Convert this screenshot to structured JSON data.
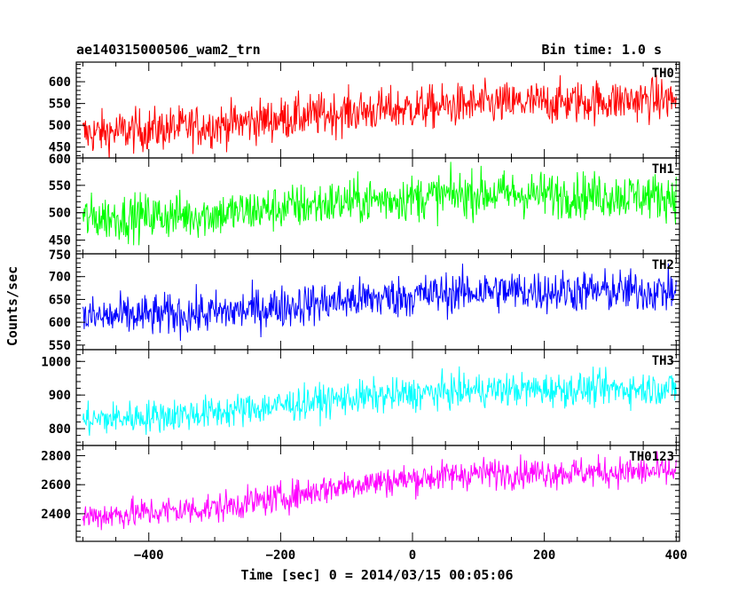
{
  "header": {
    "left_title": "ae140315000506_wam2_trn",
    "right_title": "Bin time: 1.0 s"
  },
  "chart_data": {
    "type": "line",
    "title": "ae140315000506_wam2_trn",
    "bin_time_label": "Bin time: 1.0 s",
    "xlabel": "Time [sec] 0 = 2014/03/15 00:05:06",
    "ylabel": "Counts/sec",
    "xlim": [
      -510,
      405
    ],
    "x_ticks": [
      -400,
      -200,
      0,
      200,
      400
    ],
    "x_tick_labels": [
      "−400",
      "−200",
      "0",
      "200",
      "400"
    ],
    "x_start": -500,
    "x_end": 400,
    "bin_size": 1.0,
    "grid": false,
    "series": [
      {
        "name": "TH0",
        "color": "#ff0000",
        "ylim": [
          425,
          645
        ],
        "y_ticks": [
          450,
          500,
          550,
          600
        ],
        "y_tick_labels": [
          "450",
          "500",
          "550",
          "600"
        ],
        "trend": [
          [
            -500,
            480
          ],
          [
            -300,
            500
          ],
          [
            -100,
            530
          ],
          [
            100,
            548
          ],
          [
            400,
            560
          ]
        ],
        "noise_amplitude": 45
      },
      {
        "name": "TH1",
        "color": "#00ff00",
        "ylim": [
          425,
          600
        ],
        "y_ticks": [
          450,
          500,
          550,
          600
        ],
        "y_tick_labels": [
          "450",
          "500",
          "550",
          "600"
        ],
        "trend": [
          [
            -500,
            490
          ],
          [
            -300,
            497
          ],
          [
            -100,
            520
          ],
          [
            100,
            535
          ],
          [
            400,
            530
          ]
        ],
        "noise_amplitude": 38
      },
      {
        "name": "TH2",
        "color": "#0000ff",
        "ylim": [
          540,
          750
        ],
        "y_ticks": [
          550,
          600,
          650,
          700,
          750
        ],
        "y_tick_labels": [
          "550",
          "600",
          "650",
          "700",
          "750"
        ],
        "trend": [
          [
            -500,
            610
          ],
          [
            -300,
            620
          ],
          [
            -100,
            648
          ],
          [
            100,
            668
          ],
          [
            400,
            668
          ]
        ],
        "noise_amplitude": 42
      },
      {
        "name": "TH3",
        "color": "#00ffff",
        "ylim": [
          750,
          1035
        ],
        "y_ticks": [
          800,
          900,
          1000
        ],
        "y_tick_labels": [
          "800",
          "900",
          "1000"
        ],
        "trend": [
          [
            -500,
            825
          ],
          [
            -300,
            848
          ],
          [
            -100,
            890
          ],
          [
            100,
            915
          ],
          [
            400,
            920
          ]
        ],
        "noise_amplitude": 45
      },
      {
        "name": "TH0123",
        "color": "#ff00ff",
        "ylim": [
          2210,
          2870
        ],
        "y_ticks": [
          2400,
          2600,
          2800
        ],
        "y_tick_labels": [
          "2400",
          "2600",
          "2800"
        ],
        "trend": [
          [
            -500,
            2380
          ],
          [
            -300,
            2440
          ],
          [
            -200,
            2510
          ],
          [
            -100,
            2600
          ],
          [
            100,
            2680
          ],
          [
            400,
            2690
          ]
        ],
        "noise_amplitude": 95
      }
    ]
  }
}
